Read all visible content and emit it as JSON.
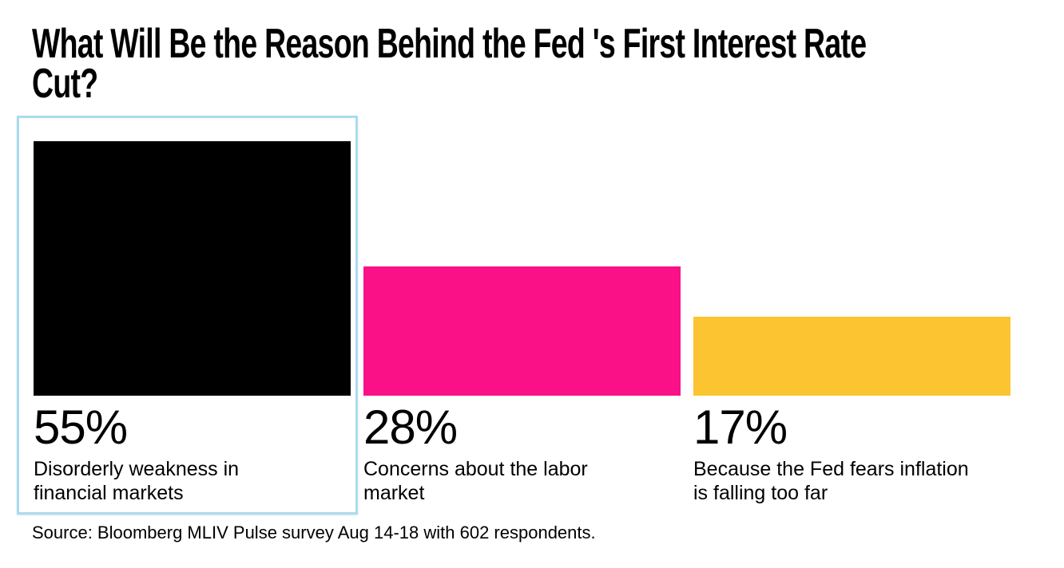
{
  "title": "What Will Be the Reason Behind the Fed 's First Interest Rate Cut?",
  "title_lines": [
    "What Will Be the Reason Behind the Fed 's First Interest Rate",
    "Cut?"
  ],
  "source": "Source: Bloomberg MLIV Pulse survey Aug 14-18 with 602 respondents.",
  "colors": {
    "background": "#ffffff",
    "text": "#000000",
    "highlight_border": "#a9dcef",
    "bar_black": "#000000",
    "bar_pink": "#fa1087",
    "bar_yellow": "#fdc432"
  },
  "chart_data": {
    "type": "bar",
    "title": "What Will Be the Reason Behind the Fed 's First Interest Rate Cut?",
    "categories": [
      "Disorderly weakness in financial markets",
      "Concerns about the labor market",
      "Because the Fed fears inflation is falling too far"
    ],
    "values": [
      55,
      28,
      17
    ],
    "value_labels": [
      "55%",
      "28%",
      "17%"
    ],
    "unit": "%",
    "bar_colors": [
      "#000000",
      "#fa1087",
      "#fdc432"
    ],
    "highlighted_index": 0,
    "highlight_border_color": "#a9dcef",
    "axes_hidden": true,
    "grid": false,
    "legend": false,
    "ylim": [
      0,
      55
    ],
    "source": "Source: Bloomberg MLIV Pulse survey Aug 14-18 with 602 respondents."
  },
  "bars": [
    {
      "pct": "55%",
      "label": "Disorderly weakness in financial markets",
      "line1": "Disorderly weakness in",
      "line2": "financial markets"
    },
    {
      "pct": "28%",
      "label": "Concerns about the labor market",
      "line1": "Concerns about the labor",
      "line2": "market"
    },
    {
      "pct": "17%",
      "label": "Because the Fed fears inflation is falling too far",
      "line1": "Because the Fed fears inflation",
      "line2": "is falling too far"
    }
  ]
}
